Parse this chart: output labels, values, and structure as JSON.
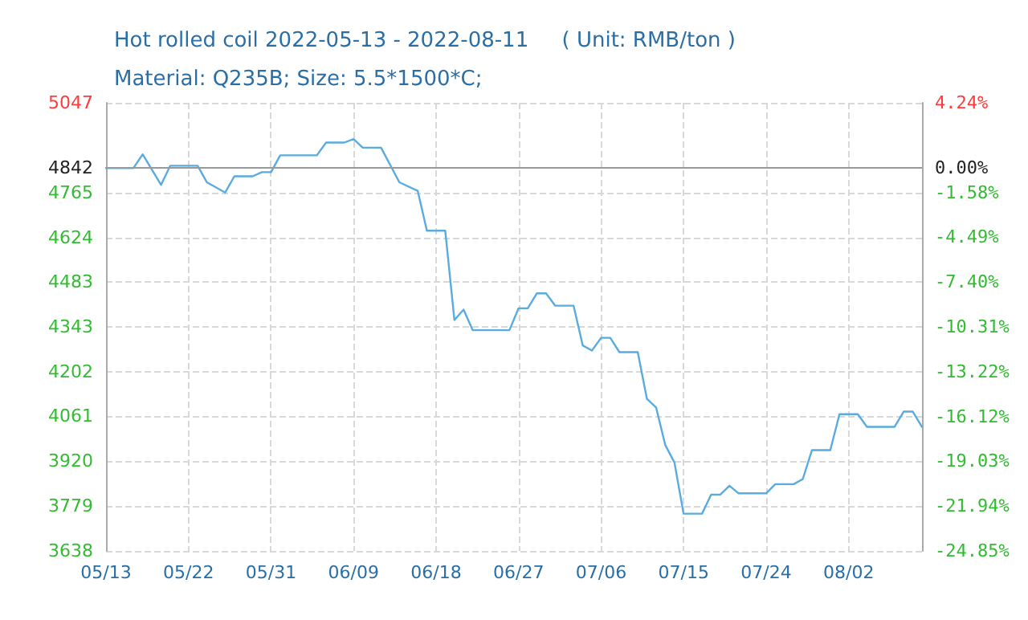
{
  "chart_data": {
    "type": "line",
    "title": "Hot rolled coil 2022-05-13 - 2022-08-11     ( Unit: RMB/ton )",
    "subtitle": "Material: Q235B; Size: 5.5*1500*C;",
    "x": [
      "2022-05-13",
      "2022-05-16",
      "2022-05-17",
      "2022-05-19",
      "2022-05-20",
      "2022-05-23",
      "2022-05-24",
      "2022-05-26",
      "2022-05-27",
      "2022-05-29",
      "2022-05-30",
      "2022-05-31",
      "2022-06-01",
      "2022-06-05",
      "2022-06-06",
      "2022-06-08",
      "2022-06-09",
      "2022-06-10",
      "2022-06-12",
      "2022-06-14",
      "2022-06-16",
      "2022-06-17",
      "2022-06-19",
      "2022-06-20",
      "2022-06-21",
      "2022-06-22",
      "2022-06-26",
      "2022-06-27",
      "2022-06-28",
      "2022-06-29",
      "2022-06-30",
      "2022-07-01",
      "2022-07-03",
      "2022-07-04",
      "2022-07-05",
      "2022-07-06",
      "2022-07-07",
      "2022-07-08",
      "2022-07-10",
      "2022-07-11",
      "2022-07-12",
      "2022-07-13",
      "2022-07-14",
      "2022-07-15",
      "2022-07-17",
      "2022-07-18",
      "2022-07-19",
      "2022-07-20",
      "2022-07-21",
      "2022-07-24",
      "2022-07-25",
      "2022-07-27",
      "2022-07-28",
      "2022-07-29",
      "2022-07-31",
      "2022-08-01",
      "2022-08-03",
      "2022-08-04",
      "2022-08-07",
      "2022-08-08",
      "2022-08-09",
      "2022-08-10"
    ],
    "series": [
      {
        "color": "#5aabe0",
        "values": [
          4842,
          4842,
          4885,
          4789,
          4849,
          4849,
          4797,
          4765,
          4816,
          4816,
          4829,
          4829,
          4882,
          4882,
          4922,
          4922,
          4933,
          4906,
          4906,
          4797,
          4770,
          4645,
          4645,
          4364,
          4397,
          4332,
          4332,
          4401,
          4401,
          4448,
          4448,
          4409,
          4409,
          4284,
          4268,
          4308,
          4308,
          4263,
          4263,
          4116,
          4089,
          3971,
          3916,
          3755,
          3755,
          3815,
          3815,
          3843,
          3819,
          3819,
          3848,
          3848,
          3864,
          3955,
          3955,
          4068,
          4068,
          4028,
          4028,
          4076,
          4076,
          4028
        ]
      }
    ],
    "xlim": [
      "2022-05-13",
      "2022-08-10"
    ],
    "xticks": [
      {
        "value": "2022-05-13",
        "label": "05/13"
      },
      {
        "value": "2022-05-22",
        "label": "05/22"
      },
      {
        "value": "2022-05-31",
        "label": "05/31"
      },
      {
        "value": "2022-06-09",
        "label": "06/09"
      },
      {
        "value": "2022-06-18",
        "label": "06/18"
      },
      {
        "value": "2022-06-27",
        "label": "06/27"
      },
      {
        "value": "2022-07-06",
        "label": "07/06"
      },
      {
        "value": "2022-07-15",
        "label": "07/15"
      },
      {
        "value": "2022-07-24",
        "label": "07/24"
      },
      {
        "value": "2022-08-02",
        "label": "08/02"
      }
    ],
    "ylim": [
      3638,
      5047
    ],
    "yticks": [
      3638,
      3779,
      3920,
      4061,
      4202,
      4343,
      4483,
      4624,
      4765,
      4842,
      5047
    ],
    "y2lim": [
      -24.85,
      4.24
    ],
    "y2ticks": [
      {
        "value": -24.85,
        "label": "-24.85%"
      },
      {
        "value": -21.94,
        "label": "-21.94%"
      },
      {
        "value": -19.03,
        "label": "-19.03%"
      },
      {
        "value": -16.12,
        "label": "-16.12%"
      },
      {
        "value": -13.22,
        "label": "-13.22%"
      },
      {
        "value": -10.31,
        "label": "-10.31%"
      },
      {
        "value": -7.4,
        "label": "-7.40%"
      },
      {
        "value": -4.49,
        "label": "-4.49%"
      },
      {
        "value": -1.58,
        "label": "-1.58%"
      },
      {
        "value": 0,
        "label": "0.00%"
      },
      {
        "value": 4.24,
        "label": "4.24%"
      }
    ],
    "ref_lines": [
      {
        "axis": "y",
        "value": 4842,
        "color": "#999999"
      }
    ],
    "grid": true,
    "marker": "none",
    "line_style": "solid"
  }
}
